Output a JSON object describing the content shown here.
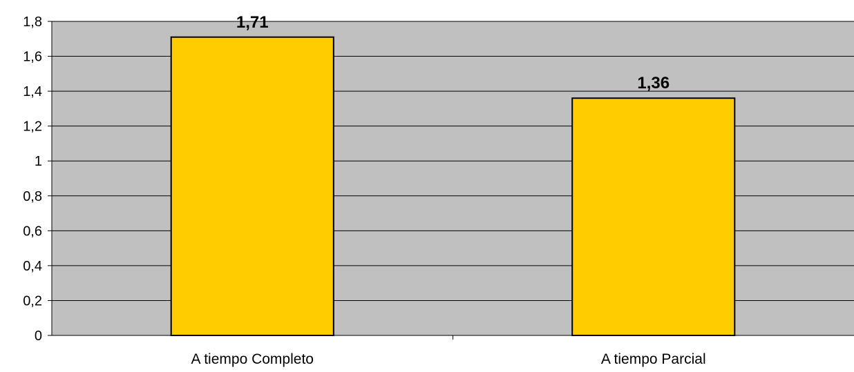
{
  "chart_data": {
    "type": "bar",
    "categories": [
      "A tiempo Completo",
      "A tiempo Parcial"
    ],
    "values": [
      1.71,
      1.36
    ],
    "data_labels": [
      "1,71",
      "1,36"
    ],
    "title": "",
    "xlabel": "",
    "ylabel": "",
    "ylim": [
      0,
      1.8
    ],
    "yticks": [
      0,
      0.2,
      0.4,
      0.6,
      0.8,
      1,
      1.2,
      1.4,
      1.6,
      1.8
    ],
    "ytick_labels": [
      "0",
      "0,2",
      "0,4",
      "0,6",
      "0,8",
      "1",
      "1,2",
      "1,4",
      "1,6",
      "1,8"
    ],
    "grid": true,
    "legend": "none",
    "colors": {
      "bar_fill": "#FFCC00",
      "bar_stroke": "#000000",
      "plot_background": "#C0C0C0",
      "gridline": "#000000"
    }
  }
}
